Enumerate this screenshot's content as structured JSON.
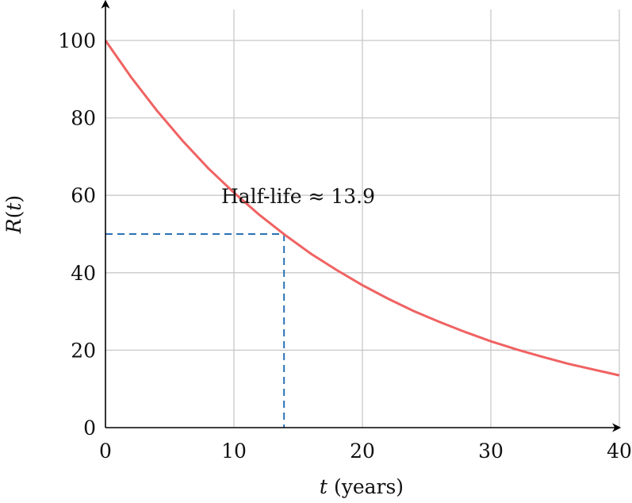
{
  "chart_data": {
    "type": "line",
    "title": "",
    "ylabel_var": "R",
    "ylabel_arg": "t",
    "xlabel_var": "t",
    "xlabel_unit": "(years)",
    "xlim": [
      0,
      40
    ],
    "ylim": [
      0,
      110
    ],
    "x_ticks": [
      0,
      10,
      20,
      30,
      40
    ],
    "y_ticks": [
      0,
      20,
      40,
      60,
      80,
      100
    ],
    "grid": true,
    "series": [
      {
        "x": [
          0,
          2,
          4,
          6,
          8,
          10,
          12,
          14,
          16,
          18,
          20,
          22,
          24,
          26,
          28,
          30,
          32,
          34,
          36,
          38,
          40
        ],
        "values": [
          100,
          90.5,
          81.9,
          74.1,
          67.0,
          60.7,
          54.9,
          49.7,
          44.9,
          40.7,
          36.8,
          33.3,
          30.1,
          27.3,
          24.7,
          22.3,
          20.2,
          18.3,
          16.5,
          15.0,
          13.5
        ],
        "color": "#f06262"
      }
    ],
    "half_life": 13.9,
    "half_value": 50,
    "annotation": "Half-life ≈ 13.9"
  }
}
